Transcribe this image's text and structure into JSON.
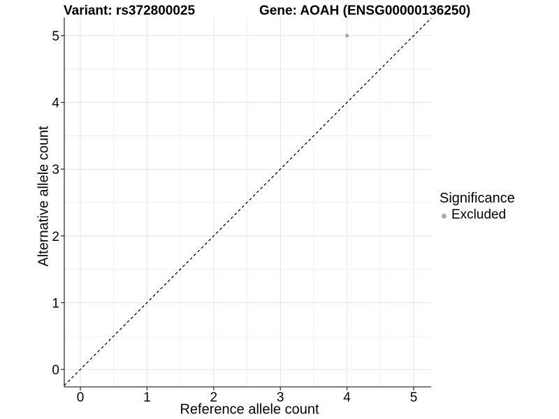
{
  "titles": {
    "variant": "Variant: rs372800025",
    "gene": "Gene: AOAH (ENSG00000136250)"
  },
  "axes": {
    "x_label": "Reference allele count",
    "y_label": "Alternative allele count"
  },
  "legend": {
    "title": "Significance",
    "items": [
      {
        "label": "Excluded",
        "color": "#a8a8a8"
      }
    ]
  },
  "colors": {
    "background": "#ffffff",
    "grid_major": "#e4e4e4",
    "grid_minor": "#efefef",
    "axis_line": "#333333",
    "tick_text": "#000000",
    "reference_line": "#000000",
    "point": "#a8a8a8"
  },
  "chart_data": {
    "type": "scatter",
    "title": "Variant: rs372800025   Gene: AOAH (ENSG00000136250)",
    "xlabel": "Reference allele count",
    "ylabel": "Alternative allele count",
    "xlim": [
      -0.26,
      5.26
    ],
    "ylim": [
      -0.26,
      5.26
    ],
    "x_ticks": [
      0,
      1,
      2,
      3,
      4,
      5
    ],
    "y_ticks": [
      0,
      1,
      2,
      3,
      4,
      5
    ],
    "grid": true,
    "minor_grid": true,
    "legend_position": "right",
    "legend_title": "Significance",
    "series": [
      {
        "name": "Excluded",
        "color": "#a8a8a8",
        "points": [
          {
            "x": 4,
            "y": 5
          }
        ]
      }
    ],
    "reference_line": {
      "kind": "identity",
      "equation": "y = x",
      "style": "dashed",
      "color": "#000000"
    }
  }
}
